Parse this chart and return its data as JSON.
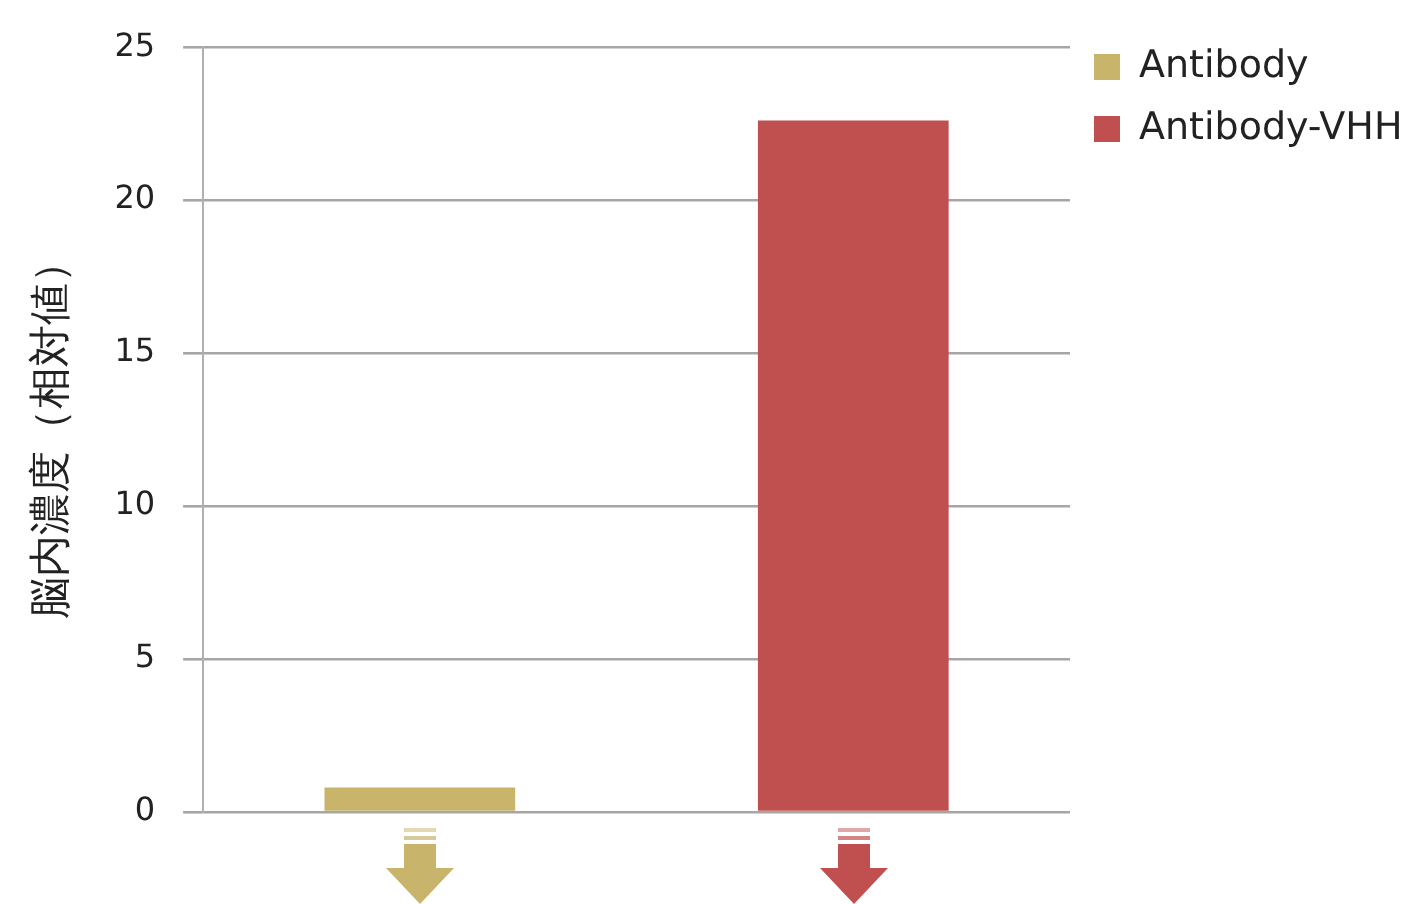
{
  "chart_data": {
    "type": "bar",
    "ylabel": "脳内濃度（相対値）",
    "categories": [
      null,
      null
    ],
    "series": [
      {
        "name": "Antibody",
        "color": "#c8b46a",
        "values": [
          0.8,
          null
        ]
      },
      {
        "name": "Antibody-VHH",
        "color": "#c0504f",
        "values": [
          null,
          22.6
        ]
      }
    ],
    "ylim": [
      0,
      25
    ],
    "yticks": [
      0,
      5,
      10,
      15,
      20,
      25
    ],
    "grid": "y",
    "legend": "top right",
    "tick_labels": "y"
  }
}
